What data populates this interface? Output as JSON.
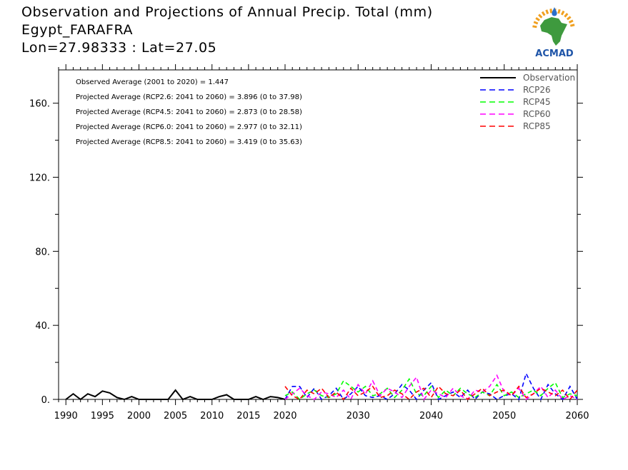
{
  "title": {
    "line1": "Observation and Projections of Annual Precip. Total (mm)",
    "line2": "Egypt_FARAFRA",
    "line3": "Lon=27.98333 : Lat=27.05"
  },
  "logo": {
    "text": "ACMAD",
    "colors": {
      "africa": "#3e9a3e",
      "rays": "#f0a020",
      "drop": "#2a6fc9",
      "text": "#1f55a8"
    }
  },
  "annotations": [
    "Observed Average (2001 to 2020) = 1.447",
    "Projected Average (RCP2.6: 2041 to 2060) = 3.896 (0 to 37.98)",
    "Projected Average (RCP4.5: 2041 to 2060) = 2.873 (0 to 28.58)",
    "Projected Average (RCP6.0: 2041 to 2060) = 2.977 (0 to 32.11)",
    "Projected Average (RCP8.5: 2041 to 2060) = 3.419 (0 to 35.63)"
  ],
  "chart_data": {
    "type": "line",
    "xlim": [
      1989,
      2060
    ],
    "ylim": [
      0,
      178
    ],
    "x_ticks": [
      1990,
      1995,
      2000,
      2005,
      2010,
      2015,
      2020,
      2030,
      2040,
      2050,
      2060
    ],
    "x_tick_labels": [
      "1990",
      "1995",
      "2000",
      "2005",
      "2010",
      "2015",
      "2020",
      "2030",
      "2040",
      "2050",
      "2060"
    ],
    "y_ticks": [
      0,
      40,
      80,
      120,
      160
    ],
    "y_tick_labels": [
      "0.",
      "40.",
      "80.",
      "120.",
      "160."
    ],
    "legend_position": "top-right",
    "series": [
      {
        "name": "Observation",
        "color": "#000000",
        "dash": "solid",
        "x": [
          1990,
          1991,
          1992,
          1993,
          1994,
          1995,
          1996,
          1997,
          1998,
          1999,
          2000,
          2001,
          2002,
          2003,
          2004,
          2005,
          2006,
          2007,
          2008,
          2009,
          2010,
          2011,
          2012,
          2013,
          2014,
          2015,
          2016,
          2017,
          2018,
          2019,
          2020
        ],
        "values": [
          0,
          3,
          0,
          3,
          1.5,
          4.5,
          3.5,
          1,
          0,
          1.5,
          0,
          0,
          0,
          0,
          0,
          5,
          0,
          1.5,
          0,
          0,
          0,
          1.5,
          2.5,
          0,
          0,
          0,
          1.5,
          0,
          1.5,
          1,
          0
        ]
      },
      {
        "name": "RCP26",
        "color": "#0000ff",
        "dash": "dashed",
        "x": [
          2020,
          2021,
          2022,
          2023,
          2024,
          2025,
          2026,
          2027,
          2028,
          2029,
          2030,
          2031,
          2032,
          2033,
          2034,
          2035,
          2036,
          2037,
          2038,
          2039,
          2040,
          2041,
          2042,
          2043,
          2044,
          2045,
          2046,
          2047,
          2048,
          2049,
          2050,
          2051,
          2052,
          2053,
          2054,
          2055,
          2056,
          2057,
          2058,
          2059,
          2060
        ],
        "values": [
          0,
          7,
          7,
          1,
          6,
          0,
          2,
          6,
          0,
          3,
          7,
          2,
          1,
          2,
          0,
          3,
          8,
          5,
          0,
          5,
          9,
          0,
          2,
          4,
          1,
          5,
          0,
          4,
          3,
          0,
          2,
          3,
          0,
          14,
          6,
          0,
          8,
          3,
          0,
          7,
          0
        ]
      },
      {
        "name": "RCP45",
        "color": "#00ff00",
        "dash": "dashed",
        "x": [
          2020,
          2021,
          2022,
          2023,
          2024,
          2025,
          2026,
          2027,
          2028,
          2029,
          2030,
          2031,
          2032,
          2033,
          2034,
          2035,
          2036,
          2037,
          2038,
          2039,
          2040,
          2041,
          2042,
          2043,
          2044,
          2045,
          2046,
          2047,
          2048,
          2049,
          2050,
          2051,
          2052,
          2053,
          2054,
          2055,
          2056,
          2057,
          2058,
          2059,
          2060
        ],
        "values": [
          2,
          4,
          0,
          3,
          5,
          2,
          1,
          3,
          10,
          7,
          4,
          7,
          2,
          3,
          6,
          1,
          5,
          11,
          3,
          2,
          7,
          1,
          5,
          2,
          6,
          3,
          1,
          4,
          2,
          8,
          2,
          4,
          1,
          3,
          5,
          2,
          6,
          9,
          1,
          3,
          2
        ]
      },
      {
        "name": "RCP60",
        "color": "#ff00ff",
        "dash": "dashed",
        "x": [
          2020,
          2021,
          2022,
          2023,
          2024,
          2025,
          2026,
          2027,
          2028,
          2029,
          2030,
          2031,
          2032,
          2033,
          2034,
          2035,
          2036,
          2037,
          2038,
          2039,
          2040,
          2041,
          2042,
          2043,
          2044,
          2045,
          2046,
          2047,
          2048,
          2049,
          2050,
          2051,
          2052,
          2053,
          2054,
          2055,
          2056,
          2057,
          2058,
          2059,
          2060
        ],
        "values": [
          0,
          3,
          6,
          2,
          0,
          4,
          3,
          1,
          5,
          0,
          8,
          3,
          10,
          2,
          6,
          4,
          1,
          7,
          12,
          0,
          5,
          3,
          1,
          6,
          2,
          0,
          5,
          4,
          7,
          13,
          4,
          2,
          6,
          0,
          3,
          7,
          1,
          5,
          0,
          2,
          0
        ]
      },
      {
        "name": "RCP85",
        "color": "#ff0000",
        "dash": "dashed",
        "x": [
          2020,
          2021,
          2022,
          2023,
          2024,
          2025,
          2026,
          2027,
          2028,
          2029,
          2030,
          2031,
          2032,
          2033,
          2034,
          2035,
          2036,
          2037,
          2038,
          2039,
          2040,
          2041,
          2042,
          2043,
          2044,
          2045,
          2046,
          2047,
          2048,
          2049,
          2050,
          2051,
          2052,
          2053,
          2054,
          2055,
          2056,
          2057,
          2058,
          2059,
          2060
        ],
        "values": [
          7,
          2,
          0,
          5,
          3,
          6,
          1,
          4,
          0,
          6,
          2,
          4,
          7,
          1,
          2,
          5,
          3,
          0,
          4,
          6,
          1,
          7,
          3,
          2,
          5,
          0,
          3,
          6,
          2,
          4,
          5,
          2,
          7,
          1,
          3,
          6,
          4,
          2,
          5,
          0,
          5
        ]
      }
    ]
  }
}
